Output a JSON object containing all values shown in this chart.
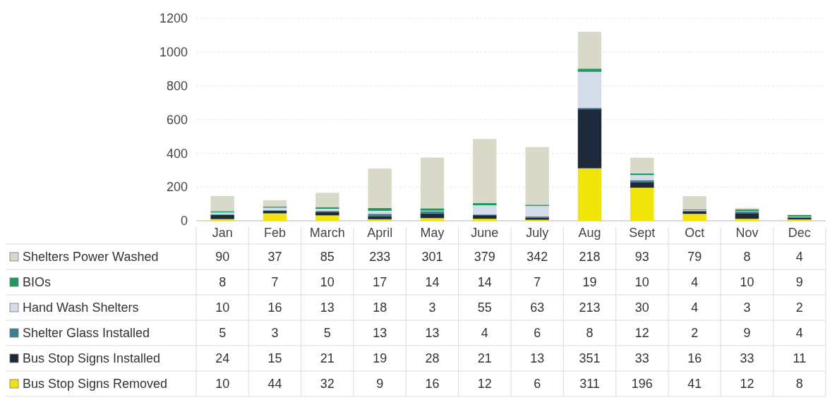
{
  "chart_data": {
    "type": "bar",
    "stacked": true,
    "categories": [
      "Jan",
      "Feb",
      "March",
      "April",
      "May",
      "June",
      "July",
      "Aug",
      "Sept",
      "Oct",
      "Nov",
      "Dec"
    ],
    "series": [
      {
        "name": "Bus Stop Signs Removed",
        "color": "#f0e40a",
        "values": [
          10,
          44,
          32,
          9,
          16,
          12,
          6,
          311,
          196,
          41,
          12,
          8
        ]
      },
      {
        "name": "Bus Stop Signs Installed",
        "color": "#1e2a3c",
        "values": [
          24,
          15,
          21,
          19,
          28,
          21,
          13,
          351,
          33,
          16,
          33,
          11
        ]
      },
      {
        "name": "Shelter Glass Installed",
        "color": "#3c7f91",
        "values": [
          5,
          3,
          5,
          13,
          13,
          4,
          6,
          8,
          12,
          2,
          9,
          4
        ]
      },
      {
        "name": "Hand Wash Shelters",
        "color": "#d3dce8",
        "values": [
          10,
          16,
          13,
          18,
          3,
          55,
          63,
          213,
          30,
          4,
          3,
          2
        ]
      },
      {
        "name": "BIOs",
        "color": "#1f9a5e",
        "values": [
          8,
          7,
          10,
          17,
          14,
          14,
          7,
          19,
          10,
          4,
          10,
          9
        ]
      },
      {
        "name": "Shelters Power Washed",
        "color": "#d9d9c9",
        "values": [
          90,
          37,
          85,
          233,
          301,
          379,
          342,
          218,
          93,
          79,
          8,
          4
        ]
      }
    ],
    "ylim": [
      0,
      1200
    ],
    "yticks": [
      0,
      200,
      400,
      600,
      800,
      1000,
      1200
    ],
    "grid": "y",
    "legend": "bottom",
    "data_labels": true
  }
}
